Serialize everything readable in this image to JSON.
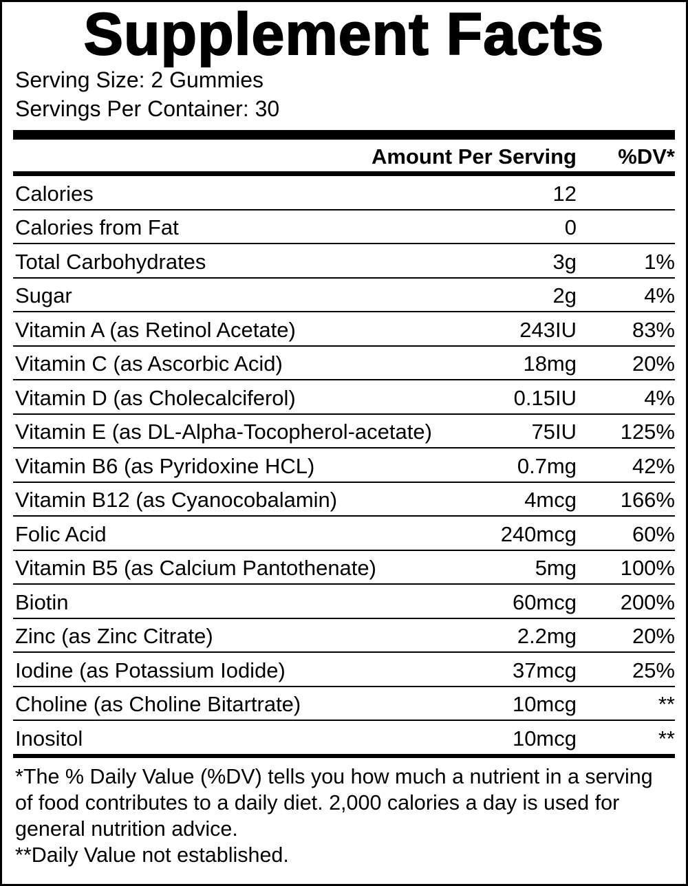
{
  "header": {
    "title": "Supplement Facts",
    "serving_size": "Serving Size: 2 Gummies",
    "servings_per_container": "Servings Per Container: 30"
  },
  "table": {
    "columns": [
      "Amount Per Serving",
      "%DV*"
    ],
    "rows": [
      {
        "name": "Calories",
        "amount": "12"
      },
      {
        "name": "Calories from Fat",
        "amount": "0"
      },
      {
        "name": "Total Carbohydrates",
        "amount": "3g",
        "dv": "1%"
      },
      {
        "name": "Sugar",
        "amount": "2g",
        "dv": "4%"
      },
      {
        "name": "Vitamin A (as Retinol Acetate)",
        "amount": "243IU",
        "dv": "83%"
      },
      {
        "name": "Vitamin C (as Ascorbic Acid)",
        "amount": "18mg",
        "dv": "20%"
      },
      {
        "name": "Vitamin D (as Cholecalciferol)",
        "amount": "0.15IU",
        "dv": "4%"
      },
      {
        "name": "Vitamin E (as DL-Alpha-Tocopherol-acetate)",
        "amount": "75IU",
        "dv": "125%"
      },
      {
        "name": "Vitamin B6 (as Pyridoxine HCL)",
        "amount": "0.7mg",
        "dv": "42%"
      },
      {
        "name": "Vitamin B12 (as Cyanocobalamin)",
        "amount": "4mcg",
        "dv": "166%"
      },
      {
        "name": "Folic Acid",
        "amount": "240mcg",
        "dv": "60%"
      },
      {
        "name": "Vitamin B5 (as Calcium Pantothenate)",
        "amount": "5mg",
        "dv": "100%"
      },
      {
        "name": "Biotin",
        "amount": "60mcg",
        "dv": "200%"
      },
      {
        "name": "Zinc (as Zinc Citrate)",
        "amount": "2.2mg",
        "dv": "20%"
      },
      {
        "name": "Iodine (as Potassium Iodide)",
        "amount": "37mcg",
        "dv": "25%"
      },
      {
        "name": "Choline (as Choline Bitartrate)",
        "amount": "10mcg",
        "dv": "**"
      },
      {
        "name": "Inositol",
        "amount": "10mcg",
        "dv": "**"
      }
    ]
  },
  "footnotes": [
    "*The % Daily Value (%DV) tells you how much a nutrient in a serving of food contributes to a daily diet. 2,000 calories a day is used for general nutrition advice.",
    "**Daily Value not established."
  ]
}
